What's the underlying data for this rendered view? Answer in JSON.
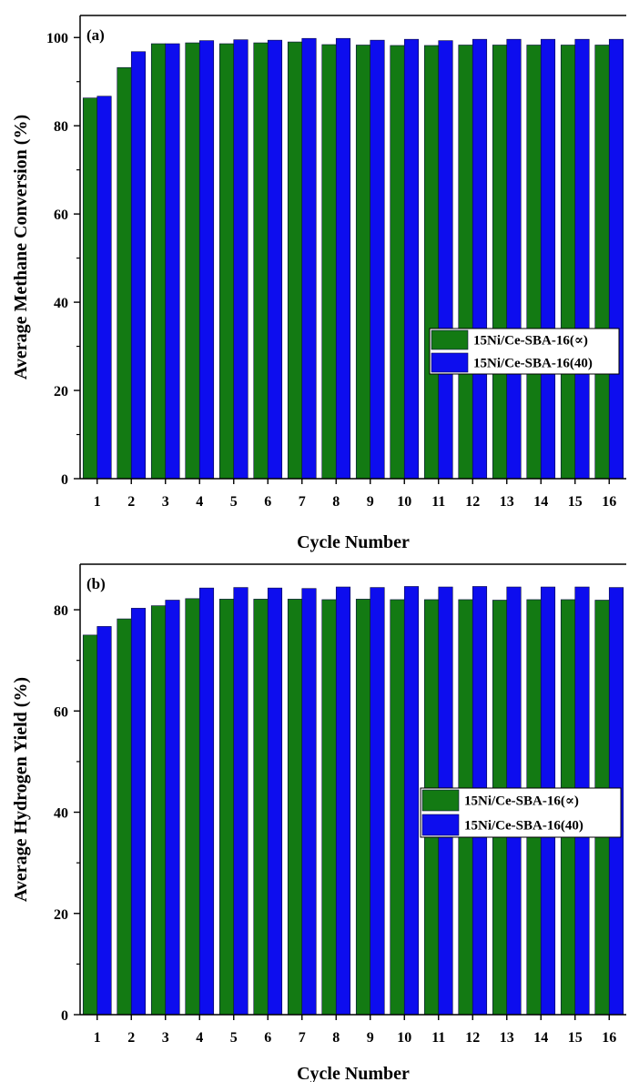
{
  "colors": {
    "green": "#137a13",
    "blue": "#0d0dee",
    "edge": "#0a0a40"
  },
  "chart_data": [
    {
      "type": "bar",
      "panel_label": "(a)",
      "xlabel": "Cycle Number",
      "ylabel": "Average Methane Conversion (%)",
      "ylim": [
        0,
        105
      ],
      "yticks": [
        0,
        20,
        40,
        60,
        80,
        100
      ],
      "categories": [
        "1",
        "2",
        "3",
        "4",
        "5",
        "6",
        "7",
        "8",
        "9",
        "10",
        "11",
        "12",
        "13",
        "14",
        "15",
        "16"
      ],
      "legend_position": "center-right",
      "series": [
        {
          "name": "15Ni/Ce-SBA-16(∝)",
          "color": "#137a13",
          "values": [
            86.3,
            93.2,
            98.6,
            98.8,
            98.6,
            98.8,
            99.0,
            98.4,
            98.3,
            98.2,
            98.2,
            98.3,
            98.3,
            98.3,
            98.3,
            98.3
          ]
        },
        {
          "name": "15Ni/Ce-SBA-16(40)",
          "color": "#0d0dee",
          "values": [
            86.7,
            96.8,
            98.6,
            99.3,
            99.5,
            99.4,
            99.8,
            99.8,
            99.4,
            99.6,
            99.3,
            99.6,
            99.6,
            99.6,
            99.6,
            99.6
          ]
        }
      ]
    },
    {
      "type": "bar",
      "panel_label": "(b)",
      "xlabel": "Cycle Number",
      "ylabel": "Average Hydrogen Yield (%)",
      "ylim": [
        0,
        89
      ],
      "yticks": [
        0,
        20,
        40,
        60,
        80
      ],
      "categories": [
        "1",
        "2",
        "3",
        "4",
        "5",
        "6",
        "7",
        "8",
        "9",
        "10",
        "11",
        "12",
        "13",
        "14",
        "15",
        "16"
      ],
      "legend_position": "center-right",
      "series": [
        {
          "name": "15Ni/Ce-SBA-16(∝)",
          "color": "#137a13",
          "values": [
            75.0,
            78.2,
            80.8,
            82.2,
            82.1,
            82.1,
            82.1,
            82.0,
            82.1,
            82.0,
            82.0,
            82.0,
            81.9,
            82.0,
            82.0,
            81.9
          ]
        },
        {
          "name": "15Ni/Ce-SBA-16(40)",
          "color": "#0d0dee",
          "values": [
            76.7,
            80.3,
            81.9,
            84.3,
            84.4,
            84.3,
            84.2,
            84.5,
            84.4,
            84.6,
            84.5,
            84.6,
            84.5,
            84.5,
            84.5,
            84.4
          ]
        }
      ]
    }
  ]
}
